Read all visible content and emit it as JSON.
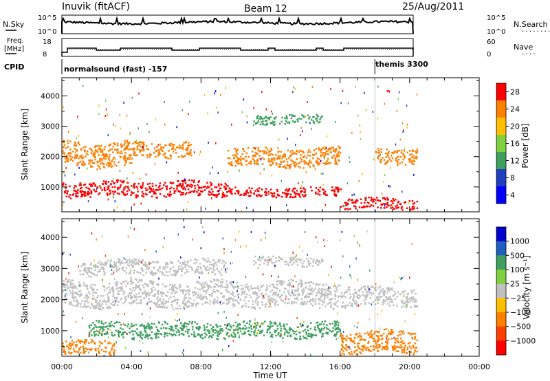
{
  "header": {
    "station": "Inuvik (fitACF)",
    "beam": "Beam 12",
    "date": "25/Aug/2011"
  },
  "noise_panel": {
    "left_label": "N.Sky",
    "right_label": "N.Search",
    "right_dots": "........",
    "ticks_left": [
      "10^5",
      "10^0"
    ],
    "ticks_right": [
      "10^5",
      "10^0"
    ]
  },
  "freq_panel": {
    "left_label_1": "Freq.",
    "left_label_2": "[MHz]",
    "right_label": "Nave",
    "right_dots": "....",
    "ticks_left": [
      "18",
      "8"
    ],
    "ticks_right": [
      "60",
      "0"
    ]
  },
  "cpid": {
    "label": "CPID",
    "mode1": "normalsound (fast) -157",
    "mode2": "themis 3300",
    "mode2_start_hour": 18.0
  },
  "colors": {
    "red": "#ff0000",
    "orange": "#ff7f00",
    "yellow": "#ffbf00",
    "darkgreen": "#3f9f5f",
    "blue": "#1f3fbf",
    "lightgreen": "#7fcf3f",
    "grey": "#c0c0c0"
  },
  "chart_data": [
    {
      "type": "heatmap",
      "name": "power",
      "ylabel": "Slant Range [km]",
      "xlabel": "Time UT",
      "xlim": [
        0,
        24
      ],
      "ylim": [
        180,
        4600
      ],
      "x_ticks": [
        "00:00",
        "04:00",
        "08:00",
        "12:00",
        "16:00",
        "20:00",
        "00:00"
      ],
      "y_ticks": [
        1000,
        2000,
        3000,
        4000
      ],
      "colorbar": {
        "label": "Power [dB]",
        "ticks": [
          "28",
          "24",
          "20",
          "16",
          "12",
          "8",
          "4"
        ],
        "colors": [
          "#ff0000",
          "#ff7f00",
          "#ffbf00",
          "#7fcf3f",
          "#3f9f5f",
          "#1f3fbf",
          "#0000ff"
        ]
      },
      "bands": [
        {
          "t0": 0.0,
          "t1": 4.0,
          "r0": 1700,
          "r1": 2500,
          "color": "orange"
        },
        {
          "t0": 4.0,
          "t1": 7.5,
          "r0": 2000,
          "r1": 2500,
          "color": "orange"
        },
        {
          "t0": 0.0,
          "t1": 9.5,
          "r0": 700,
          "r1": 1200,
          "color": "red"
        },
        {
          "t0": 9.5,
          "t1": 16.0,
          "r0": 1700,
          "r1": 2300,
          "color": "orange"
        },
        {
          "t0": 9.5,
          "t1": 16.0,
          "r0": 700,
          "r1": 1000,
          "color": "red"
        },
        {
          "t0": 11.0,
          "t1": 15.0,
          "r0": 3100,
          "r1": 3400,
          "color": "darkgreen"
        },
        {
          "t0": 16.0,
          "t1": 20.4,
          "r0": 300,
          "r1": 650,
          "color": "red"
        },
        {
          "t0": 18.0,
          "t1": 20.4,
          "r0": 1800,
          "r1": 2300,
          "color": "orange"
        }
      ]
    },
    {
      "type": "heatmap",
      "name": "velocity",
      "ylabel": "Slant Range [km]",
      "xlabel": "Time UT",
      "xlim": [
        0,
        24
      ],
      "ylim": [
        180,
        4600
      ],
      "x_ticks": [
        "00:00",
        "04:00",
        "08:00",
        "12:00",
        "16:00",
        "20:00",
        "00:00"
      ],
      "y_ticks": [
        1000,
        2000,
        3000,
        4000
      ],
      "colorbar": {
        "label": "Velocity [m s⁻¹]",
        "ticks": [
          "1000",
          "500",
          "100",
          "25",
          "−25",
          "−100",
          "−500",
          "−1000"
        ],
        "colors": [
          "#0000cf",
          "#1f5fbf",
          "#3f9f5f",
          "#7fcf3f",
          "#c0c0c0",
          "#ffbf00",
          "#ff7f00",
          "#ff3f00",
          "#ff0000"
        ]
      },
      "bands": [
        {
          "t0": 0.0,
          "t1": 16.0,
          "r0": 1800,
          "r1": 2600,
          "color": "grey"
        },
        {
          "t0": 1.0,
          "t1": 9.5,
          "r0": 2800,
          "r1": 3300,
          "color": "grey"
        },
        {
          "t0": 11.0,
          "t1": 15.0,
          "r0": 3100,
          "r1": 3400,
          "color": "grey"
        },
        {
          "t0": 1.5,
          "t1": 16.0,
          "r0": 800,
          "r1": 1300,
          "color": "darkgreen"
        },
        {
          "t0": 0.0,
          "t1": 3.0,
          "r0": 250,
          "r1": 700,
          "color": "orange"
        },
        {
          "t0": 16.0,
          "t1": 20.4,
          "r0": 300,
          "r1": 1000,
          "color": "orange"
        },
        {
          "t0": 16.0,
          "t1": 20.4,
          "r0": 1800,
          "r1": 2400,
          "color": "grey"
        }
      ]
    }
  ]
}
